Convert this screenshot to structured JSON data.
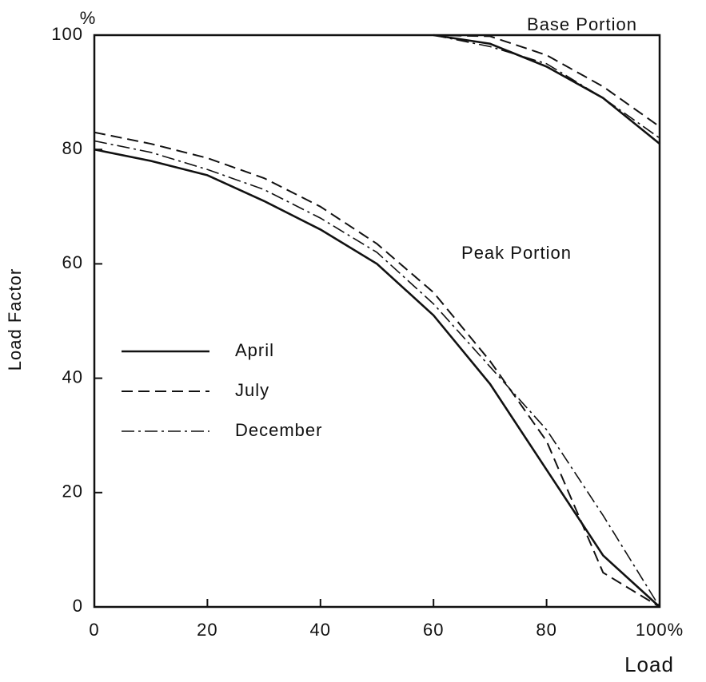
{
  "chart_data": {
    "type": "line",
    "y_unit": "%",
    "xlabel": "Load",
    "ylabel": "Load Factor",
    "annotations": [
      "Base Portion",
      "Peak Portion"
    ],
    "x": [
      0,
      10,
      20,
      30,
      40,
      50,
      60,
      70,
      80,
      90,
      100
    ],
    "base_x": [
      60,
      70,
      80,
      90,
      100
    ],
    "xlim": [
      0,
      100
    ],
    "ylim": [
      0,
      100
    ],
    "xticks": [
      0,
      20,
      40,
      60,
      80,
      {
        "value": 100,
        "label": "100%"
      }
    ],
    "yticks": [
      0,
      20,
      40,
      60,
      80,
      100
    ],
    "series": [
      {
        "name": "April",
        "color": "#111111",
        "dash": "solid",
        "values": [
          80,
          78,
          75.5,
          71,
          66,
          60,
          51,
          39,
          24,
          9,
          0
        ],
        "base_values": [
          100,
          98.5,
          94.5,
          89,
          81
        ]
      },
      {
        "name": "July",
        "color": "#111111",
        "dash": "dashed",
        "values": [
          83,
          81,
          78.5,
          75,
          70,
          63.5,
          55,
          43,
          29,
          6,
          0
        ],
        "base_values": [
          100,
          99.8,
          96.5,
          91,
          84
        ]
      },
      {
        "name": "December",
        "color": "#111111",
        "dash": "dashdot",
        "values": [
          81.5,
          79.5,
          76.5,
          73,
          68,
          62,
          53,
          42,
          31,
          16,
          0
        ],
        "base_values": [
          100,
          98,
          95,
          89,
          82
        ]
      }
    ]
  }
}
